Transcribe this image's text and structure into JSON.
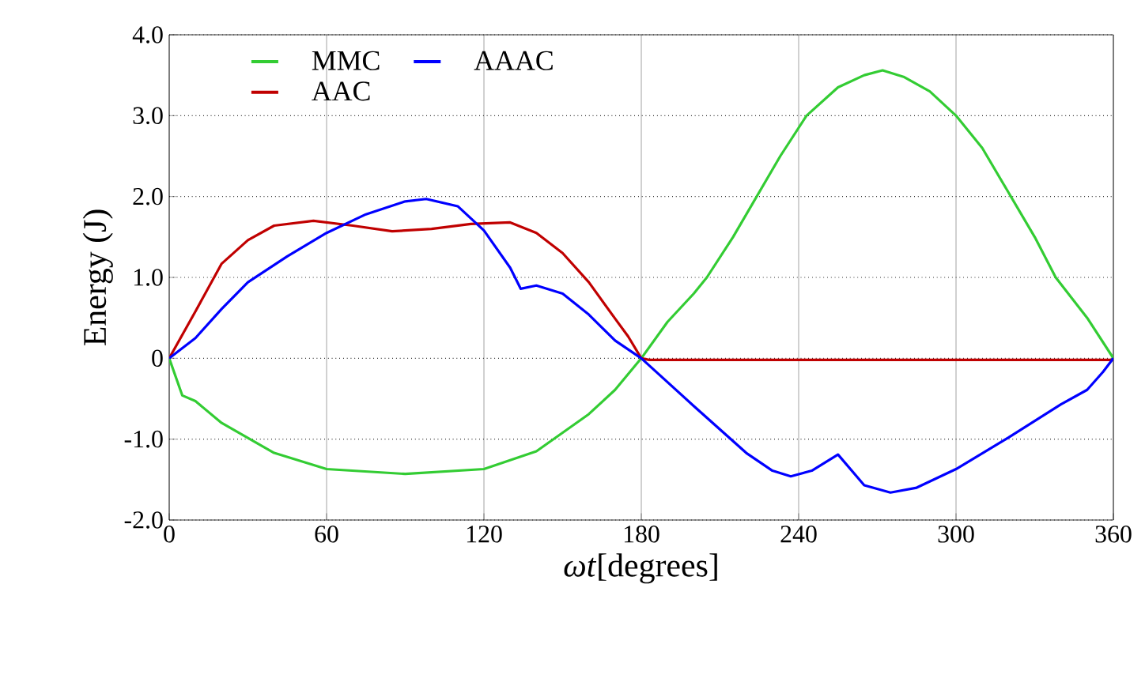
{
  "chart_data": {
    "type": "line",
    "xlabel": "*ωt*[degrees]",
    "ylabel": "Energy (J)",
    "xlim": [
      0,
      360
    ],
    "xticks": [
      0,
      60,
      120,
      180,
      240,
      300,
      360
    ],
    "ylim": [
      -2,
      4
    ],
    "yticks": [
      {
        "value": -2,
        "label": "-2.0"
      },
      {
        "value": -1,
        "label": "-1.0"
      },
      0,
      {
        "value": 1,
        "label": "1.0"
      },
      {
        "value": 2,
        "label": "2.0"
      },
      {
        "value": 3,
        "label": "3.0"
      },
      {
        "value": 4,
        "label": "4.0"
      }
    ],
    "grid": true,
    "legend": "top left",
    "marker": "none",
    "line_style": "solid",
    "series": [
      {
        "name": "MMC",
        "color": "#33cc33",
        "x": [
          0,
          5,
          10,
          20,
          40,
          60,
          90,
          120,
          140,
          160,
          170,
          180,
          190,
          200,
          205,
          215,
          224,
          233,
          243,
          255,
          265,
          272,
          280,
          290,
          300,
          310,
          320,
          330,
          338,
          350,
          360
        ],
        "values": [
          0,
          -0.46,
          -0.53,
          -0.8,
          -1.17,
          -1.37,
          -1.43,
          -1.37,
          -1.15,
          -0.69,
          -0.39,
          0,
          0.45,
          0.8,
          1.0,
          1.5,
          2.0,
          2.5,
          3.0,
          3.35,
          3.5,
          3.56,
          3.48,
          3.3,
          3.0,
          2.6,
          2.05,
          1.5,
          1.0,
          0.5,
          0
        ]
      },
      {
        "name": "AAC",
        "color": "#c00000",
        "x": [
          0,
          10,
          20,
          30,
          40,
          55,
          70,
          85,
          100,
          115,
          130,
          140,
          150,
          160,
          170,
          175,
          180,
          183,
          360
        ],
        "values": [
          0,
          0.58,
          1.17,
          1.46,
          1.64,
          1.7,
          1.64,
          1.57,
          1.6,
          1.66,
          1.68,
          1.55,
          1.3,
          0.94,
          0.49,
          0.27,
          0,
          -0.02,
          -0.02
        ]
      },
      {
        "name": "AAAC",
        "color": "#0000ff",
        "x": [
          0,
          10,
          20,
          30,
          45,
          60,
          75,
          90,
          98,
          110,
          120,
          130,
          134,
          140,
          150,
          160,
          170,
          180,
          200,
          220,
          230,
          237,
          245,
          255,
          265,
          275,
          285,
          300,
          320,
          340,
          350,
          356,
          360
        ],
        "values": [
          0,
          0.25,
          0.61,
          0.94,
          1.26,
          1.55,
          1.78,
          1.94,
          1.97,
          1.88,
          1.58,
          1.12,
          0.86,
          0.9,
          0.8,
          0.54,
          0.22,
          0,
          -0.59,
          -1.17,
          -1.39,
          -1.46,
          -1.39,
          -1.19,
          -1.57,
          -1.66,
          -1.6,
          -1.37,
          -0.98,
          -0.57,
          -0.39,
          -0.17,
          0
        ]
      }
    ]
  }
}
